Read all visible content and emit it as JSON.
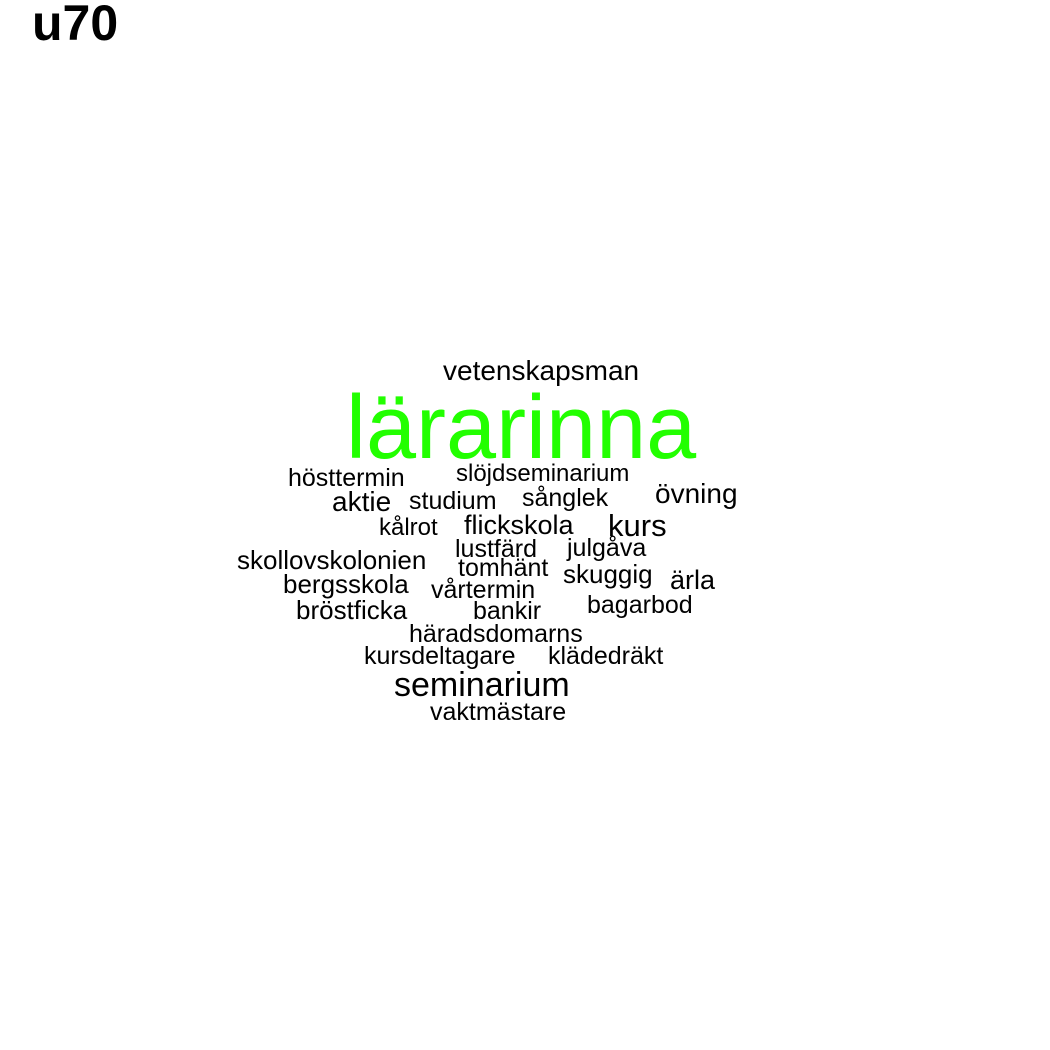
{
  "title": "u70",
  "colors": {
    "highlight": "#22ff00",
    "text": "#000000",
    "background": "#ffffff"
  },
  "words": [
    {
      "text": "vetenskapsman",
      "weight": 2
    },
    {
      "text": "lärarinna",
      "weight": 10
    },
    {
      "text": "hösttermin",
      "weight": 2
    },
    {
      "text": "slöjdseminarium",
      "weight": 2
    },
    {
      "text": "aktie",
      "weight": 3
    },
    {
      "text": "studium",
      "weight": 2
    },
    {
      "text": "sånglek",
      "weight": 2
    },
    {
      "text": "övning",
      "weight": 2
    },
    {
      "text": "kålrot",
      "weight": 2
    },
    {
      "text": "flickskola",
      "weight": 2
    },
    {
      "text": "kurs",
      "weight": 3
    },
    {
      "text": "skollovskolonien",
      "weight": 2
    },
    {
      "text": "lustfärd",
      "weight": 2
    },
    {
      "text": "julgåva",
      "weight": 2
    },
    {
      "text": "tomhänt",
      "weight": 2
    },
    {
      "text": "bergsskola",
      "weight": 2
    },
    {
      "text": "skuggig",
      "weight": 2
    },
    {
      "text": "ärla",
      "weight": 2
    },
    {
      "text": "vårtermin",
      "weight": 2
    },
    {
      "text": "bröstficka",
      "weight": 2
    },
    {
      "text": "bankir",
      "weight": 2
    },
    {
      "text": "bagarbod",
      "weight": 2
    },
    {
      "text": "häradsdomarns",
      "weight": 2
    },
    {
      "text": "kursdeltagare",
      "weight": 2
    },
    {
      "text": "klädedräkt",
      "weight": 2
    },
    {
      "text": "seminarium",
      "weight": 4
    },
    {
      "text": "vaktmästare",
      "weight": 2
    }
  ]
}
